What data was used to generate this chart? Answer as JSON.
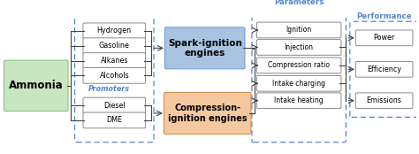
{
  "ammonia_label": "Ammonia",
  "promoters_fuels": [
    "Hydrogen",
    "Gasoline",
    "Alkanes",
    "Alcohols"
  ],
  "promoters_label": "Promoters",
  "compression_fuels": [
    "Diesel",
    "DME"
  ],
  "spark_engine_label": "Spark-ignition\nengines",
  "compression_engine_label": "Compression-\nignition engines",
  "parameters_label": "Parameters",
  "parameters": [
    "Ignition",
    "Injection",
    "Compression ratio",
    "Intake charging",
    "Intake heating"
  ],
  "performance_label": "Performance",
  "performance": [
    "Power",
    "Efficiency",
    "Emissions"
  ],
  "color_ammonia_face": "#c8e6c0",
  "color_ammonia_edge": "#88bb88",
  "color_spark_face": "#a8c4e0",
  "color_spark_edge": "#6699cc",
  "color_compression_face": "#f5c8a0",
  "color_compression_edge": "#cc8844",
  "color_box_face": "#ffffff",
  "color_box_edge": "#888888",
  "color_dashed_blue": "#5588cc",
  "color_arrow": "#444444",
  "figsize": [
    4.74,
    1.74
  ],
  "dpi": 100
}
